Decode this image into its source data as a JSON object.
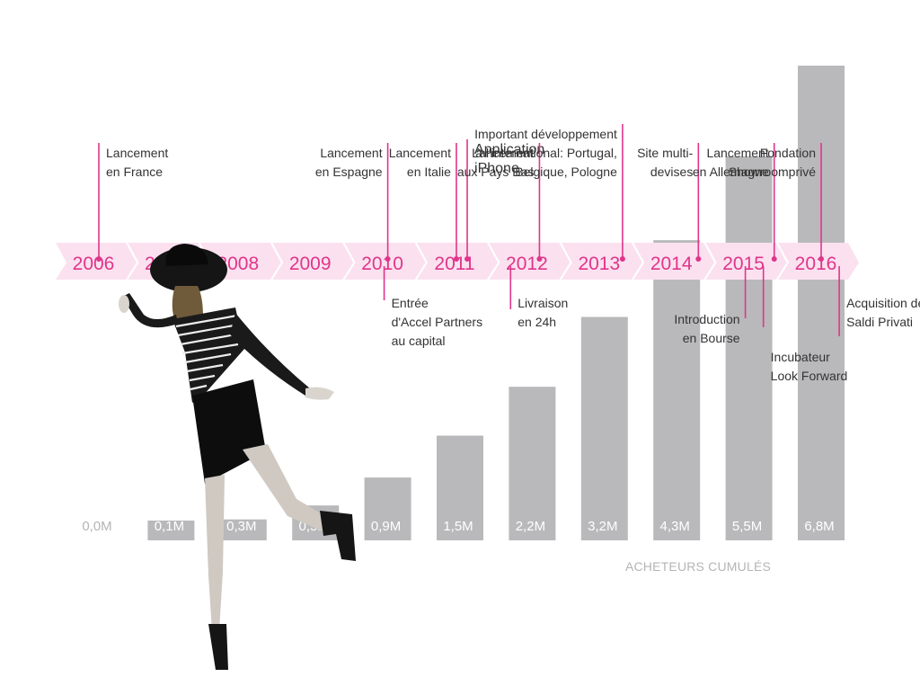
{
  "chart_data": {
    "type": "bar",
    "categories": [
      "2006",
      "2007",
      "2008",
      "2009",
      "2010",
      "2011",
      "2012",
      "2013",
      "2014",
      "2015",
      "2016"
    ],
    "values": [
      0.0,
      0.1,
      0.3,
      0.5,
      0.9,
      1.5,
      2.2,
      3.2,
      4.3,
      5.5,
      6.8
    ],
    "value_labels": [
      "0,0M",
      "0,1M",
      "0,3M",
      "0,5M",
      "0,9M",
      "1,5M",
      "2,2M",
      "3,2M",
      "4,3M",
      "5,5M",
      "6,8M"
    ],
    "caption": "ACHETEURS CUMULÉS",
    "timeline_color": "#e0358b",
    "band_color": "#fbe1ef",
    "bar_color": "#b9b9bb",
    "events_above": [
      {
        "text": [
          "Lancement",
          "en France"
        ],
        "pos": 2006.0
      },
      {
        "text": [
          "Lancement",
          "en Espagne"
        ],
        "pos": 2010.0
      },
      {
        "text": [
          "Lancement",
          "en Italie"
        ],
        "pos": 2010.95
      },
      {
        "text": [
          "Application",
          "iPhone"
        ],
        "pos": 2011.1,
        "large": true
      },
      {
        "text": [
          "Lancement",
          "aux Pays Bas"
        ],
        "pos": 2012.1
      },
      {
        "text": [
          "Important développement",
          "à l'international: Portugal,",
          "Belgique, Pologne"
        ],
        "pos": 2013.25
      },
      {
        "text": [
          "Site multi-",
          "devises"
        ],
        "pos": 2014.3
      },
      {
        "text": [
          "Lancement",
          "en Allemagne"
        ],
        "pos": 2015.35
      },
      {
        "text": [
          "Fondation",
          "Showroomprivé"
        ],
        "pos": 2016.0
      }
    ],
    "events_below": [
      {
        "text": [
          "Entrée",
          "d'Accel Partners",
          "au capital"
        ],
        "pos": 2009.95
      },
      {
        "text": [
          "Livraison",
          "en 24h"
        ],
        "pos": 2011.7
      },
      {
        "text": [
          "Introduction",
          "en Bourse"
        ],
        "pos": 2014.95
      },
      {
        "text": [
          "Incubateur",
          "Look Forward"
        ],
        "pos": 2015.2
      },
      {
        "text": [
          "Acquisition de",
          "Saldi Privati"
        ],
        "pos": 2016.25
      }
    ]
  }
}
